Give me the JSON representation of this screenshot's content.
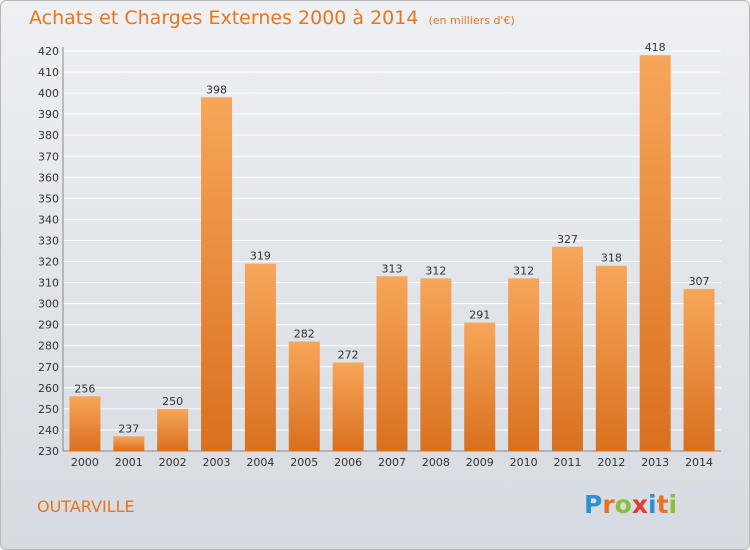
{
  "title": "Achats et Charges Externes 2000 à 2014",
  "title_unit": "(en milliers d'€)",
  "place": "OUTARVILLE",
  "logo": {
    "letters": [
      "P",
      "r",
      "o",
      "x",
      "i",
      "t",
      "i"
    ],
    "colors": [
      "#2f8fd1",
      "#e8712a",
      "#8bbf3a",
      "#e23b2f",
      "#2f8fd1",
      "#e8712a",
      "#8bbf3a"
    ]
  },
  "colors": {
    "title": "#e5761e",
    "bar_light": "#f7a65a",
    "bar_dark": "#d9701e",
    "grid": "#ffffff"
  },
  "chart_data": {
    "type": "bar",
    "categories": [
      "2000",
      "2001",
      "2002",
      "2003",
      "2004",
      "2005",
      "2006",
      "2007",
      "2008",
      "2009",
      "2010",
      "2011",
      "2012",
      "2013",
      "2014"
    ],
    "values": [
      256,
      237,
      250,
      398,
      319,
      282,
      272,
      313,
      312,
      291,
      312,
      327,
      318,
      418,
      307
    ],
    "title": "Achats et Charges Externes 2000 à 2014",
    "xlabel": "",
    "ylabel": "",
    "ylim": [
      230,
      420
    ],
    "yticks": [
      230,
      240,
      250,
      260,
      270,
      280,
      290,
      300,
      310,
      320,
      330,
      340,
      350,
      360,
      370,
      380,
      390,
      400,
      410,
      420
    ],
    "grid": true,
    "legend": "none"
  }
}
